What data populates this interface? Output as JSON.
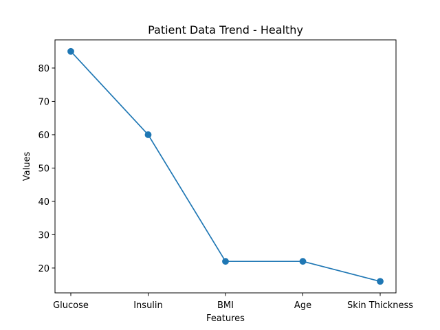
{
  "chart_data": {
    "type": "line",
    "title": "Patient Data Trend - Healthy",
    "xlabel": "Features",
    "ylabel": "Values",
    "categories": [
      "Glucose",
      "Insulin",
      "BMI",
      "Age",
      "Skin Thickness"
    ],
    "series": [
      {
        "values": [
          85,
          60,
          22,
          22,
          16
        ]
      }
    ],
    "ylim": [
      12.55,
      88.45
    ],
    "y_ticks": [
      20,
      30,
      40,
      50,
      60,
      70,
      80
    ],
    "y_tick_labels": [
      "20",
      "30",
      "40",
      "50",
      "60",
      "70",
      "80"
    ],
    "grid": false,
    "legend": "none",
    "colors": {
      "line": "#1f77b4",
      "marker": "#1f77b4",
      "axes": "#000000",
      "background": "#ffffff"
    }
  }
}
